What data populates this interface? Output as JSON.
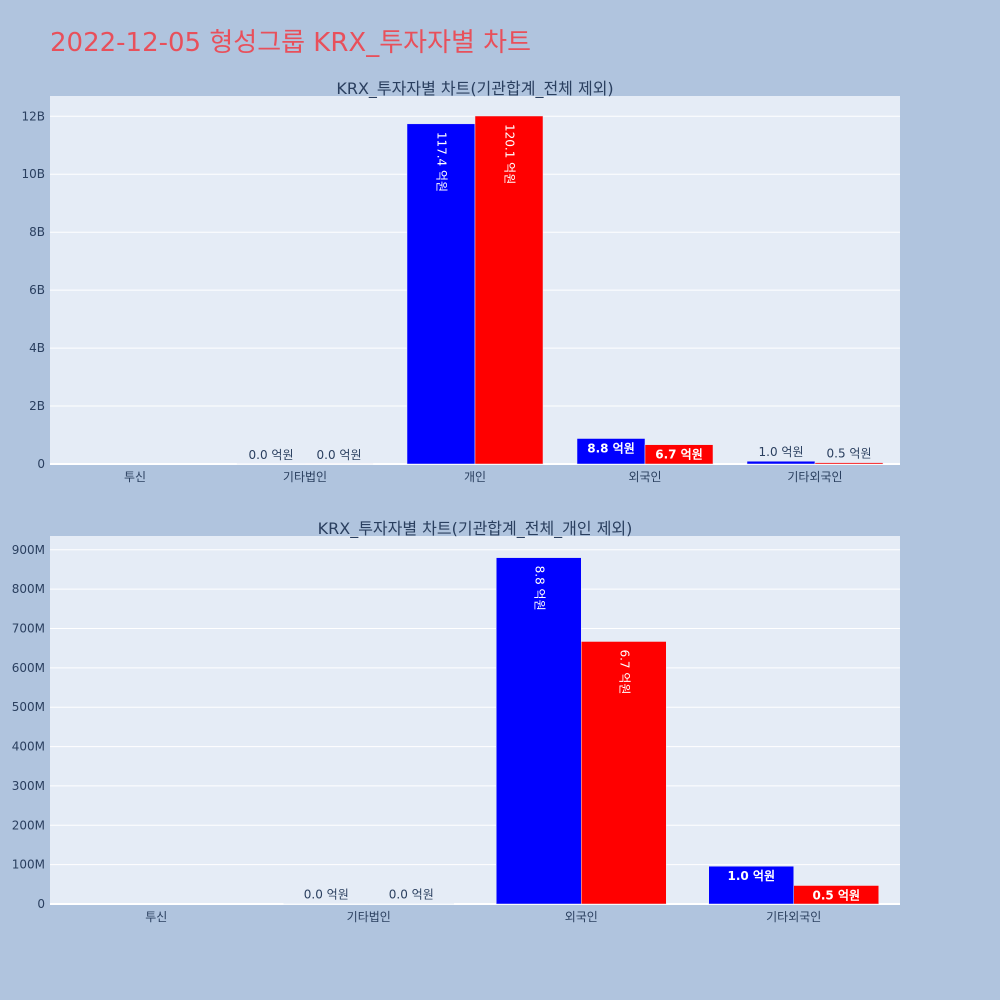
{
  "page": {
    "title": "2022-12-05 형성그룹 KRX_투자자별 차트"
  },
  "colors": {
    "buy": "#0000ff",
    "sell": "#ff0000",
    "plot_bg": "#e5ecf6",
    "page_bg": "#b0c4de",
    "title": "#e8505b",
    "text": "#2a3f5f"
  },
  "chart_data": [
    {
      "type": "bar",
      "title": "KRX_투자자별 차트(기관합계_전체 제외)",
      "categories": [
        "투신",
        "기타법인",
        "개인",
        "외국인",
        "기타외국인"
      ],
      "ylim": [
        0,
        12700000000
      ],
      "ytick_values": [
        0,
        2000000000,
        4000000000,
        6000000000,
        8000000000,
        10000000000,
        12000000000
      ],
      "ytick_labels": [
        "0",
        "2B",
        "4B",
        "6B",
        "8B",
        "10B",
        "12B"
      ],
      "grid": true,
      "series": [
        {
          "color": "#0000ff",
          "values": [
            0,
            1000000,
            11740000000,
            880000000,
            96000000
          ],
          "labels": [
            "",
            "0.0 억원",
            "117.4 억원",
            "8.8 억원",
            "1.0 억원"
          ]
        },
        {
          "color": "#ff0000",
          "values": [
            0,
            1000000,
            12010000000,
            667000000,
            47000000
          ],
          "labels": [
            "",
            "0.0 억원",
            "120.1 억원",
            "6.7 억원",
            "0.5 억원"
          ]
        }
      ]
    },
    {
      "type": "bar",
      "title": "KRX_투자자별 차트(기관합계_전체_개인 제외)",
      "categories": [
        "투신",
        "기타법인",
        "외국인",
        "기타외국인"
      ],
      "ylim": [
        0,
        935000000
      ],
      "ytick_values": [
        0,
        100000000,
        200000000,
        300000000,
        400000000,
        500000000,
        600000000,
        700000000,
        800000000,
        900000000
      ],
      "ytick_labels": [
        "0",
        "100M",
        "200M",
        "300M",
        "400M",
        "500M",
        "600M",
        "700M",
        "800M",
        "900M"
      ],
      "grid": true,
      "series": [
        {
          "color": "#0000ff",
          "values": [
            0,
            1000000,
            880000000,
            96000000
          ],
          "labels": [
            "",
            "0.0 억원",
            "8.8 억원",
            "1.0 억원"
          ]
        },
        {
          "color": "#ff0000",
          "values": [
            0,
            1000000,
            667000000,
            47000000
          ],
          "labels": [
            "",
            "0.0 억원",
            "6.7 억원",
            "0.5 억원"
          ]
        }
      ]
    }
  ]
}
